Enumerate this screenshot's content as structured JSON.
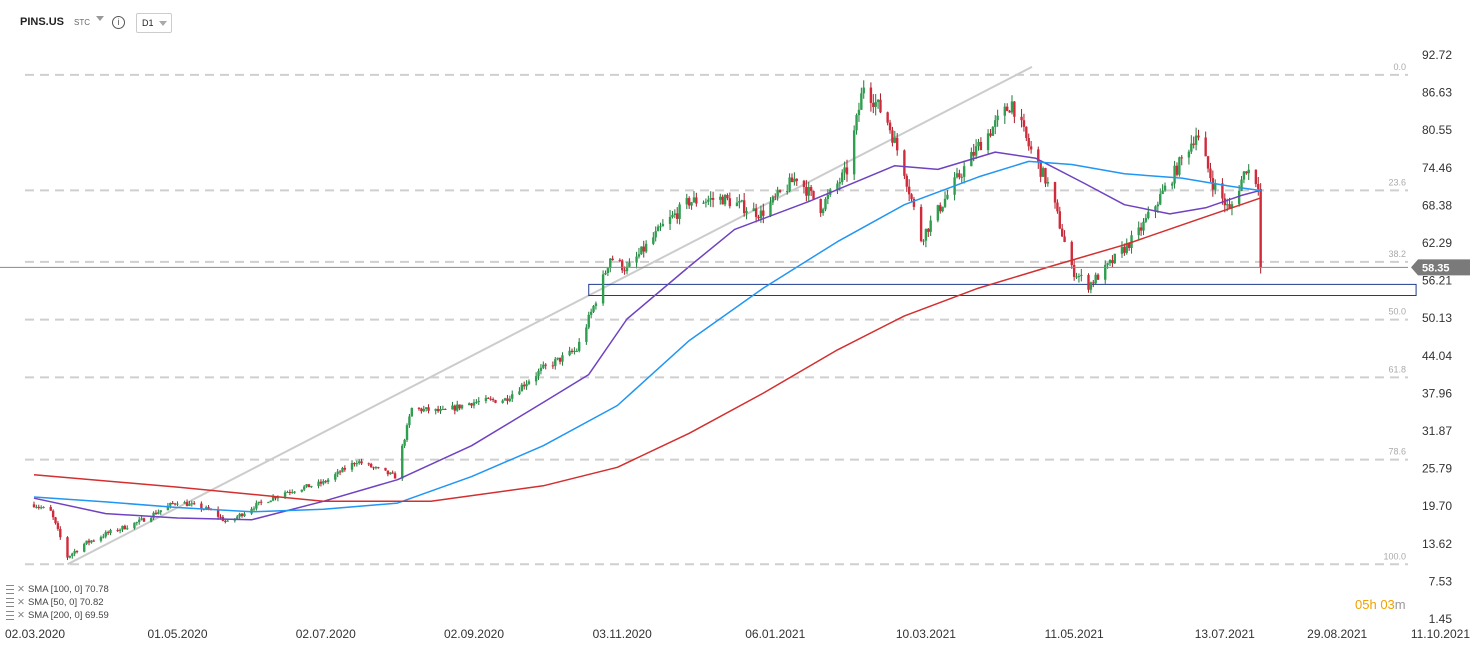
{
  "toolbar": {
    "symbol": "PINS.US",
    "instrument_type": "STC",
    "info_icon": "info-icon",
    "timeframe": "D1"
  },
  "countdown": {
    "hours": "05",
    "h": "h",
    "minutes": "03",
    "m": "m"
  },
  "legend": [
    {
      "label": "SMA",
      "params": "[100,  0]",
      "value": "70.78",
      "color": "#2196f3"
    },
    {
      "label": "SMA",
      "params": "[50,  0]",
      "value": "70.82",
      "color": "#6f42c1"
    },
    {
      "label": "SMA",
      "params": "[200,  0]",
      "value": "69.59",
      "color": "#d32f2f"
    }
  ],
  "chart_data": {
    "type": "candlestick",
    "symbol": "PINS.US",
    "timeframe": "D1",
    "last_price": "58.35",
    "last_price_value": 58.35,
    "y_ticks": [
      "92.72",
      "86.63",
      "80.55",
      "74.46",
      "68.38",
      "62.29",
      "56.21",
      "50.13",
      "44.04",
      "37.96",
      "31.87",
      "25.79",
      "19.70",
      "13.62",
      "7.53",
      "1.45"
    ],
    "y_tick_values": [
      92.72,
      86.63,
      80.55,
      74.46,
      68.38,
      62.29,
      56.21,
      50.13,
      44.04,
      37.96,
      31.87,
      25.79,
      19.7,
      13.62,
      7.53,
      1.45
    ],
    "x_ticks": [
      "02.03.2020",
      "01.05.2020",
      "02.07.2020",
      "02.09.2020",
      "03.11.2020",
      "06.01.2021",
      "10.03.2021",
      "11.05.2021",
      "13.07.2021",
      "29.08.2021",
      "11.10.2021"
    ],
    "fibonacci": {
      "levels": [
        "0.0",
        "23.6",
        "38.2",
        "50.0",
        "61.8",
        "78.6",
        "100.0"
      ],
      "level_ratios": [
        0,
        0.236,
        0.382,
        0.5,
        0.618,
        0.786,
        1.0
      ],
      "high": 89.5,
      "low": 10.3,
      "trendline": {
        "from": {
          "date": "2020-03-16",
          "price": 10.3
        },
        "to": {
          "date": "2021-04-15",
          "price": 89.5
        }
      }
    },
    "support_zone": {
      "from": "2020-10-20",
      "to": "2021-10-01",
      "top": 55.6,
      "bottom": 53.8
    },
    "price_path": [
      [
        "2020-03-02",
        20.0
      ],
      [
        "2020-03-09",
        18.8
      ],
      [
        "2020-03-16",
        11.5
      ],
      [
        "2020-03-23",
        13.6
      ],
      [
        "2020-04-01",
        15.2
      ],
      [
        "2020-04-15",
        17.2
      ],
      [
        "2020-05-01",
        20.5
      ],
      [
        "2020-05-15",
        19.0
      ],
      [
        "2020-05-22",
        17.0
      ],
      [
        "2020-06-01",
        19.5
      ],
      [
        "2020-06-15",
        22.0
      ],
      [
        "2020-07-01",
        23.5
      ],
      [
        "2020-07-15",
        27.0
      ],
      [
        "2020-07-31",
        24.5
      ],
      [
        "2020-08-07",
        35.5
      ],
      [
        "2020-08-20",
        35.0
      ],
      [
        "2020-09-01",
        36.5
      ],
      [
        "2020-09-15",
        37.0
      ],
      [
        "2020-10-01",
        42.0
      ],
      [
        "2020-10-15",
        45.0
      ],
      [
        "2020-10-22",
        52.0
      ],
      [
        "2020-10-29",
        60.0
      ],
      [
        "2020-11-05",
        58.0
      ],
      [
        "2020-11-20",
        65.0
      ],
      [
        "2020-12-01",
        69.0
      ],
      [
        "2020-12-15",
        69.5
      ],
      [
        "2020-12-31",
        67.0
      ],
      [
        "2021-01-15",
        73.0
      ],
      [
        "2021-01-25",
        68.0
      ],
      [
        "2021-02-05",
        74.0
      ],
      [
        "2021-02-12",
        88.0
      ],
      [
        "2021-02-22",
        82.0
      ],
      [
        "2021-03-01",
        74.0
      ],
      [
        "2021-03-08",
        63.0
      ],
      [
        "2021-03-22",
        72.0
      ],
      [
        "2021-04-01",
        78.0
      ],
      [
        "2021-04-15",
        85.0
      ],
      [
        "2021-04-22",
        78.0
      ],
      [
        "2021-05-01",
        71.0
      ],
      [
        "2021-05-10",
        58.0
      ],
      [
        "2021-05-17",
        55.5
      ],
      [
        "2021-05-24",
        58.0
      ],
      [
        "2021-06-07",
        64.0
      ],
      [
        "2021-06-21",
        73.0
      ],
      [
        "2021-07-01",
        80.0
      ],
      [
        "2021-07-08",
        72.0
      ],
      [
        "2021-07-15",
        67.5
      ],
      [
        "2021-07-22",
        74.5
      ],
      [
        "2021-07-27",
        72.0
      ],
      [
        "2021-07-28",
        58.35
      ]
    ],
    "series": [
      {
        "name": "SMA [50, 0]",
        "color": "#6f42c1",
        "points": [
          [
            "2020-03-02",
            21.0
          ],
          [
            "2020-04-01",
            18.5
          ],
          [
            "2020-05-01",
            17.8
          ],
          [
            "2020-06-01",
            17.5
          ],
          [
            "2020-07-01",
            20.5
          ],
          [
            "2020-08-01",
            24.0
          ],
          [
            "2020-09-01",
            29.5
          ],
          [
            "2020-10-01",
            36.5
          ],
          [
            "2020-10-20",
            41.0
          ],
          [
            "2020-11-05",
            50.0
          ],
          [
            "2020-12-01",
            58.5
          ],
          [
            "2020-12-20",
            64.5
          ],
          [
            "2021-01-20",
            69.0
          ],
          [
            "2021-02-25",
            74.8
          ],
          [
            "2021-03-15",
            74.2
          ],
          [
            "2021-04-08",
            77.0
          ],
          [
            "2021-04-25",
            76.0
          ],
          [
            "2021-05-15",
            72.0
          ],
          [
            "2021-06-01",
            68.5
          ],
          [
            "2021-06-20",
            67.0
          ],
          [
            "2021-07-05",
            68.0
          ],
          [
            "2021-07-20",
            70.0
          ],
          [
            "2021-07-28",
            70.82
          ]
        ]
      },
      {
        "name": "SMA [100, 0]",
        "color": "#2196f3",
        "points": [
          [
            "2020-03-02",
            21.2
          ],
          [
            "2020-04-01",
            20.4
          ],
          [
            "2020-05-01",
            19.5
          ],
          [
            "2020-06-01",
            18.8
          ],
          [
            "2020-07-01",
            19.2
          ],
          [
            "2020-08-01",
            20.2
          ],
          [
            "2020-09-01",
            24.5
          ],
          [
            "2020-10-01",
            29.5
          ],
          [
            "2020-11-01",
            36.0
          ],
          [
            "2020-12-01",
            46.5
          ],
          [
            "2021-01-01",
            55.0
          ],
          [
            "2021-02-01",
            62.5
          ],
          [
            "2021-03-01",
            68.5
          ],
          [
            "2021-04-01",
            73.0
          ],
          [
            "2021-04-22",
            75.5
          ],
          [
            "2021-05-10",
            75.0
          ],
          [
            "2021-06-01",
            73.5
          ],
          [
            "2021-06-25",
            72.8
          ],
          [
            "2021-07-15",
            71.5
          ],
          [
            "2021-07-28",
            70.78
          ]
        ]
      },
      {
        "name": "SMA [200, 0]",
        "color": "#d32f2f",
        "points": [
          [
            "2020-03-02",
            24.8
          ],
          [
            "2020-05-01",
            22.8
          ],
          [
            "2020-07-01",
            20.5
          ],
          [
            "2020-08-15",
            20.5
          ],
          [
            "2020-10-01",
            23.0
          ],
          [
            "2020-11-01",
            26.0
          ],
          [
            "2020-12-01",
            31.5
          ],
          [
            "2021-01-01",
            38.0
          ],
          [
            "2021-02-01",
            45.0
          ],
          [
            "2021-03-01",
            50.5
          ],
          [
            "2021-04-01",
            55.0
          ],
          [
            "2021-05-01",
            58.5
          ],
          [
            "2021-06-01",
            62.0
          ],
          [
            "2021-07-01",
            66.0
          ],
          [
            "2021-07-28",
            69.59
          ]
        ]
      }
    ]
  }
}
